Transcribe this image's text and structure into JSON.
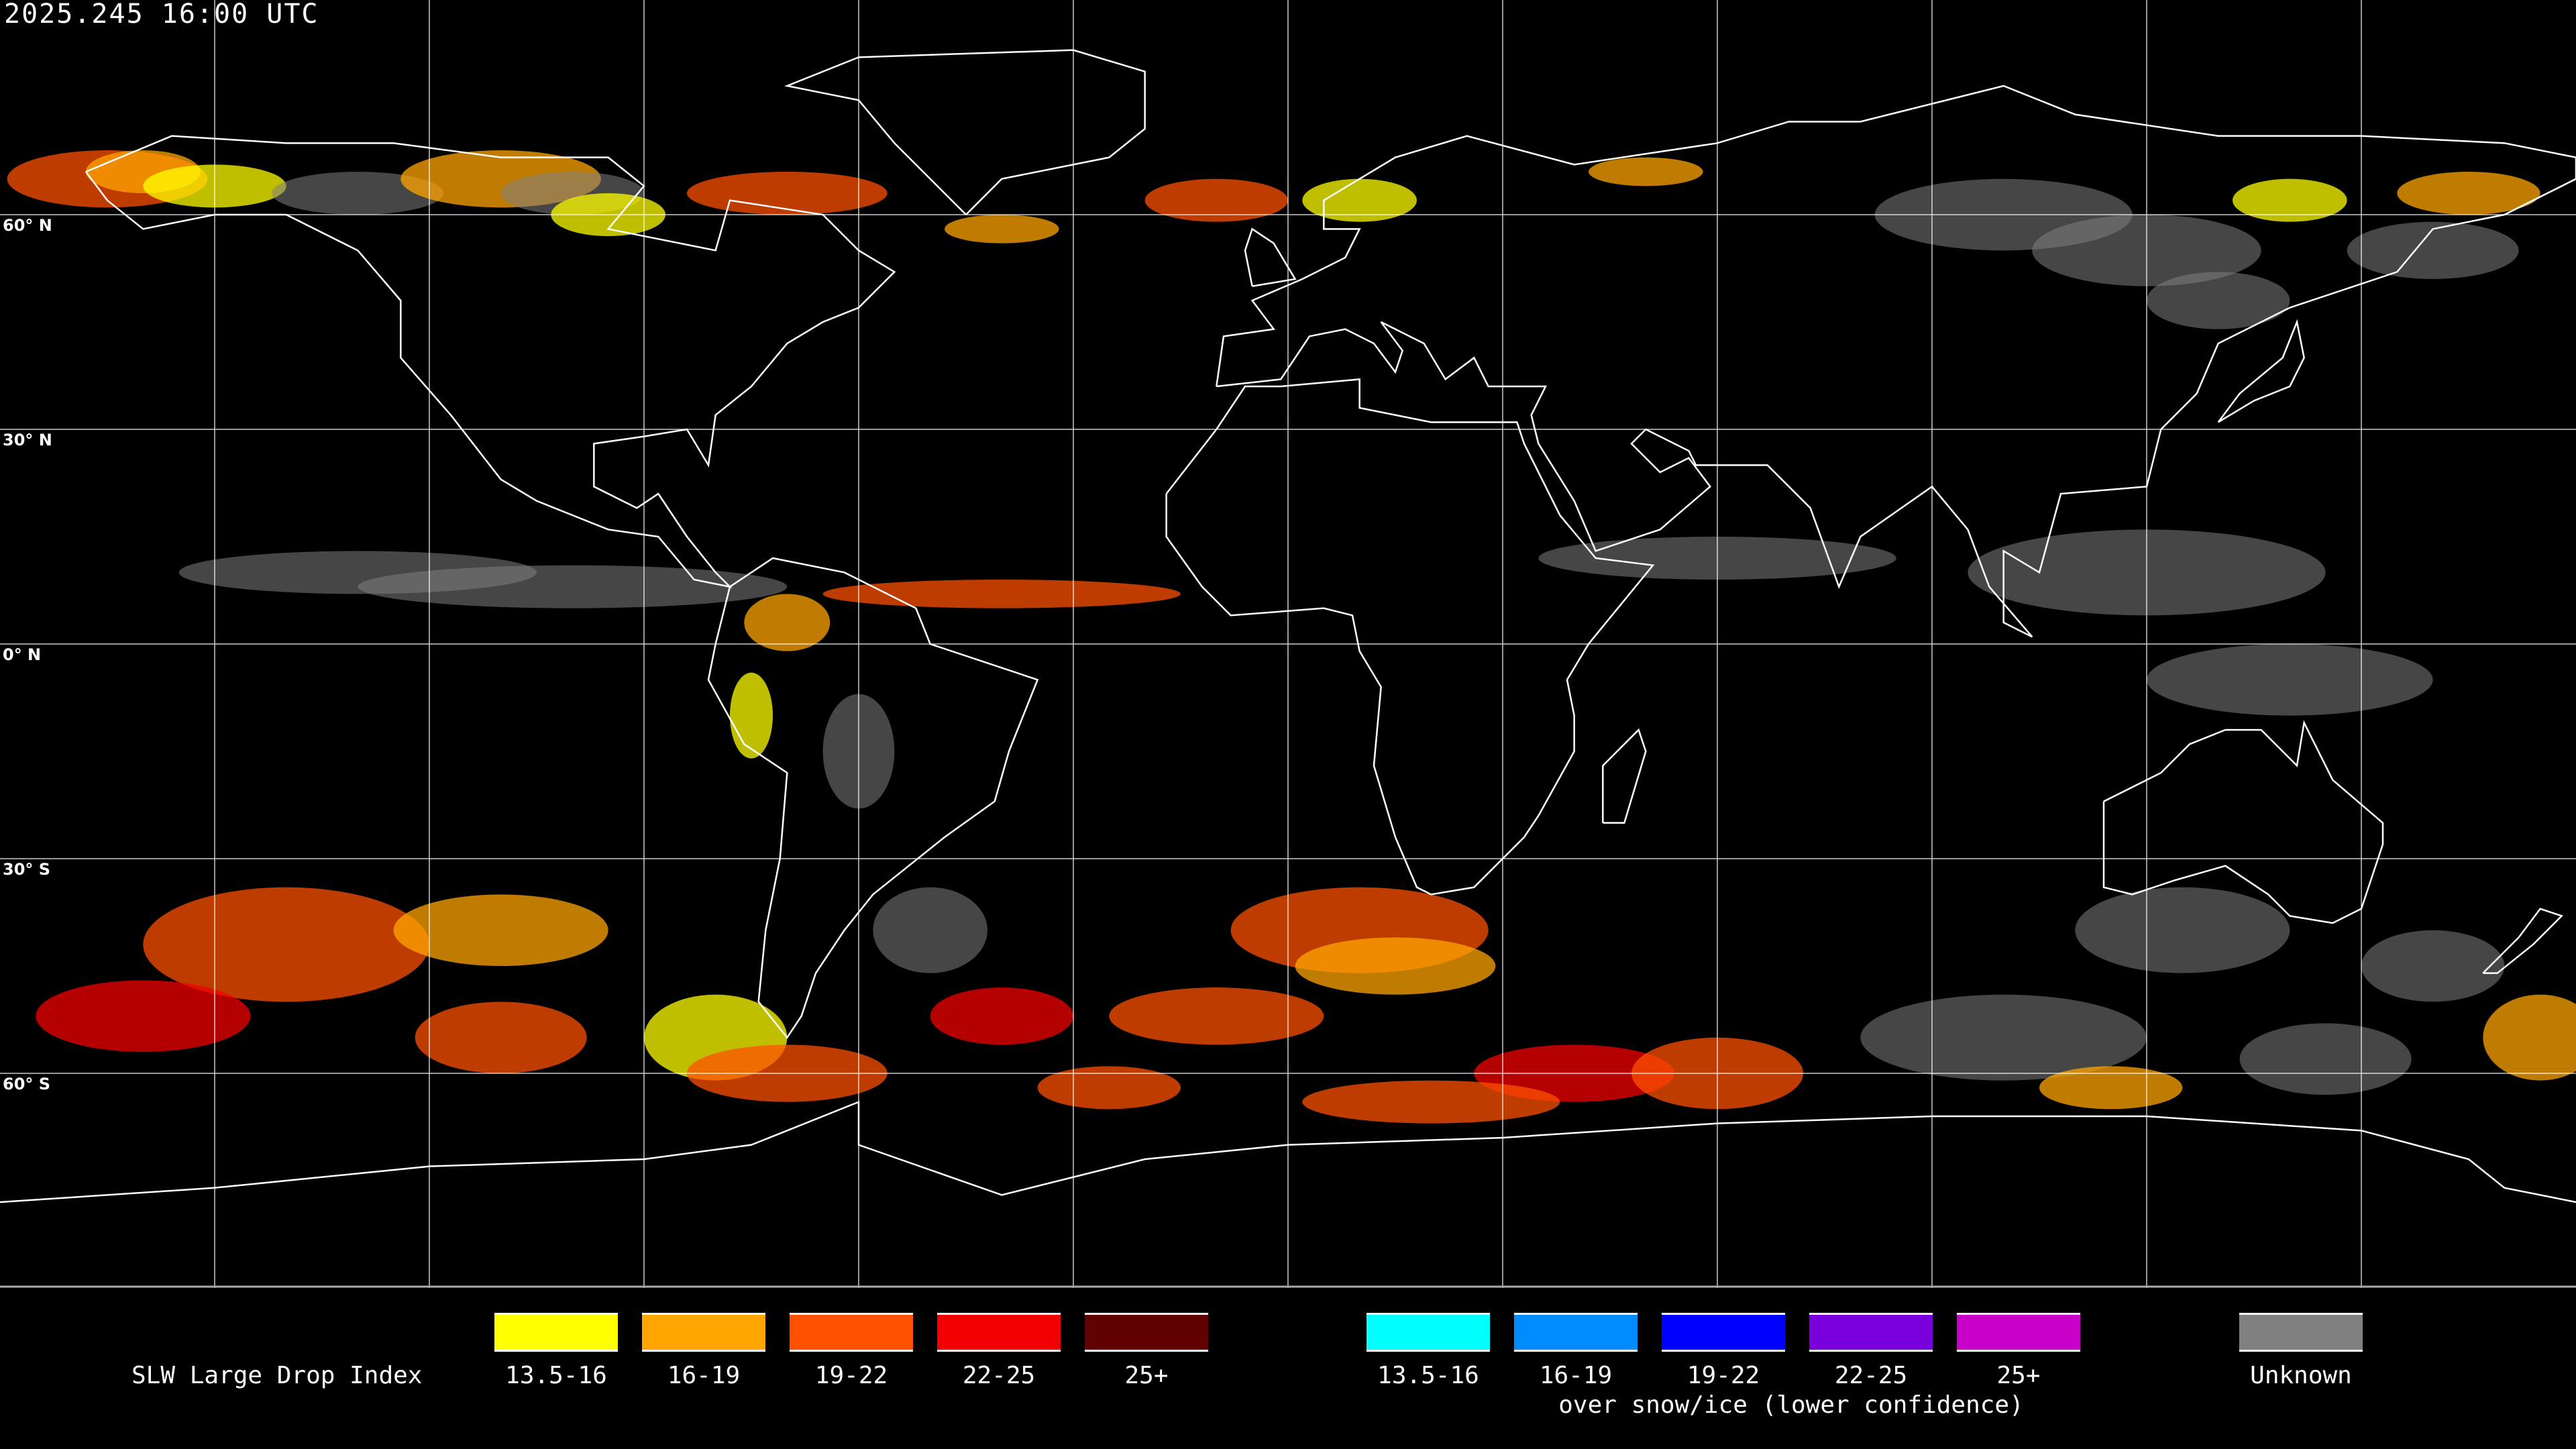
{
  "header": {
    "timestamp": "2025.245 16:00 UTC"
  },
  "map": {
    "projection": "equirectangular",
    "background": "#000000",
    "coastline_color": "#ffffff",
    "grid_color": "#ffffff",
    "grid_spacing_degrees": 30,
    "lat_labels": [
      "60° N",
      "30° N",
      "0° N",
      "30° S",
      "60° S"
    ]
  },
  "legend": {
    "title": "SLW Large Drop Index",
    "primary": [
      {
        "label": "13.5-16",
        "color": "#ffff00"
      },
      {
        "label": "16-19",
        "color": "#ffa500"
      },
      {
        "label": "19-22",
        "color": "#ff5000"
      },
      {
        "label": "22-25",
        "color": "#f00000"
      },
      {
        "label": "25+",
        "color": "#600000"
      }
    ],
    "snow_ice": [
      {
        "label": "13.5-16",
        "color": "#00ffff"
      },
      {
        "label": "16-19",
        "color": "#008cff"
      },
      {
        "label": "19-22",
        "color": "#0000ff"
      },
      {
        "label": "22-25",
        "color": "#7800dc"
      },
      {
        "label": "25+",
        "color": "#c800c8"
      }
    ],
    "snow_ice_caption": "over snow/ice (lower confidence)",
    "unknown": {
      "label": "Unknown",
      "color": "#808080"
    }
  }
}
